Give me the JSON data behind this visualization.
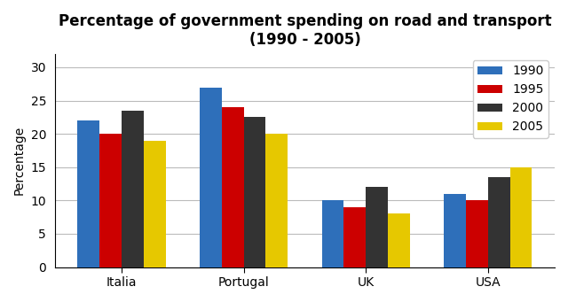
{
  "title": "Percentage of government spending on road and transport\n(1990 - 2005)",
  "ylabel": "Percentage",
  "categories": [
    "Italia",
    "Portugal",
    "UK",
    "USA"
  ],
  "years": [
    "1990",
    "1995",
    "2000",
    "2005"
  ],
  "values": {
    "1990": [
      22,
      27,
      10,
      11
    ],
    "1995": [
      20,
      24,
      9,
      10
    ],
    "2000": [
      23.5,
      22.5,
      12,
      13.5
    ],
    "2005": [
      19,
      20,
      8,
      15
    ]
  },
  "colors": {
    "1990": "#2e6fba",
    "1995": "#cc0000",
    "2000": "#333333",
    "2005": "#e6c800"
  },
  "ylim": [
    0,
    32
  ],
  "yticks": [
    0,
    5,
    10,
    15,
    20,
    25,
    30
  ],
  "bar_width": 0.18,
  "title_fontsize": 12,
  "label_fontsize": 10,
  "tick_fontsize": 10,
  "background_color": "#ffffff",
  "grid_color": "#bbbbbb"
}
